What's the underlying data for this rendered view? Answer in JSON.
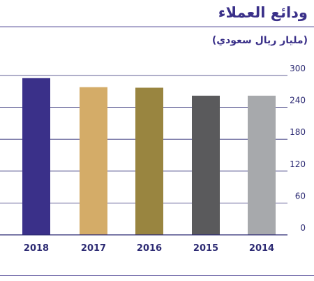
{
  "header": {
    "title": "ودائع العملاء",
    "subtitle": "(مليار ريال سعودي)"
  },
  "colors": {
    "accent": "#3a3089",
    "axis": "#2c2a73",
    "grid": "#2c2a73",
    "bars": [
      "#3a3089",
      "#d4ac68",
      "#998540",
      "#5a5a5c",
      "#a7a9ac"
    ]
  },
  "chart_data": {
    "type": "bar",
    "categories": [
      "2018",
      "2017",
      "2016",
      "2015",
      "2014"
    ],
    "values": [
      295,
      278,
      277,
      262,
      262
    ],
    "ylim": [
      0,
      300
    ],
    "yticks": [
      "0",
      "60",
      "120",
      "180",
      "240",
      "300"
    ],
    "xlabel": "",
    "ylabel": "",
    "grid": true,
    "legend": "none"
  }
}
